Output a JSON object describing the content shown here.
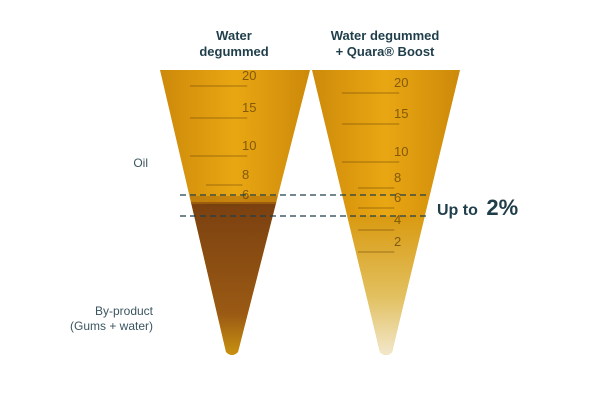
{
  "columns": [
    {
      "title": [
        "Water",
        "degummed"
      ],
      "scale": [
        "20",
        "15",
        "10",
        "8",
        "6"
      ]
    },
    {
      "title": [
        "Water degummed",
        "+ Quara® Boost"
      ],
      "scale": [
        "20",
        "15",
        "10",
        "8",
        "6",
        "4",
        "2"
      ]
    }
  ],
  "labels": {
    "oil": "Oil",
    "byproduct": [
      "By-product",
      "(Gums + water)"
    ]
  },
  "callout": {
    "prefix": "Up to",
    "value": "2%"
  }
}
